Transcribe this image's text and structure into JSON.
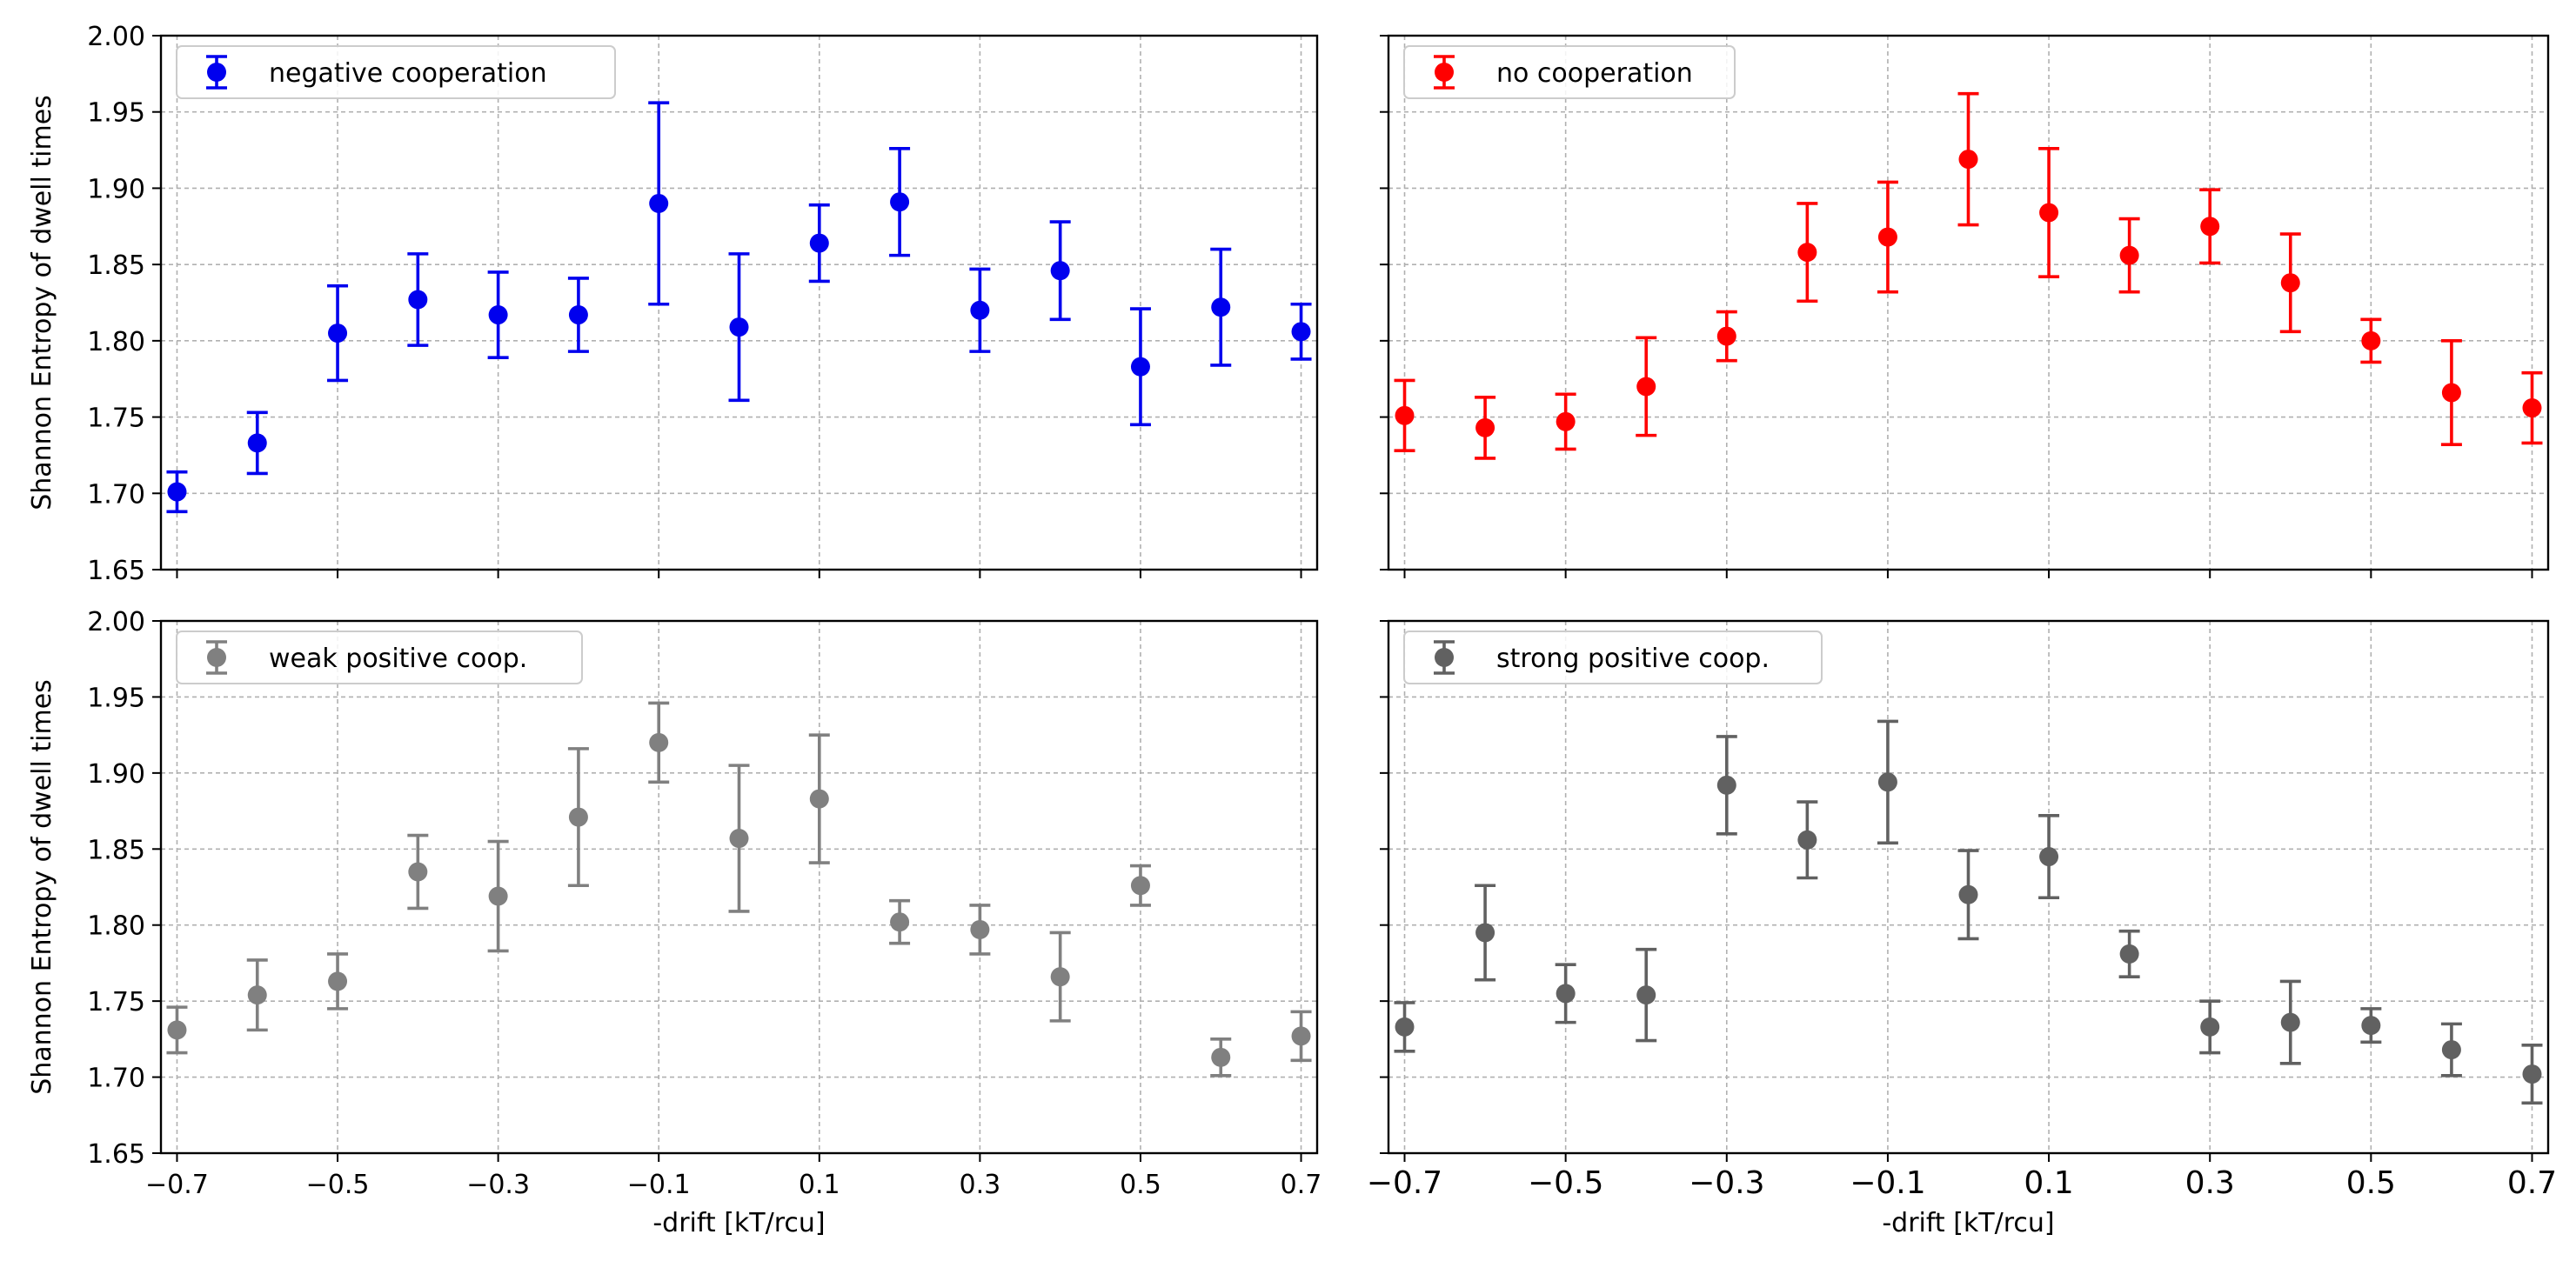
{
  "chart_data": [
    {
      "type": "scatter",
      "panel": "top-left",
      "error_bars": true,
      "ylabel": "Shannon Entropy of dwell times",
      "xlabel": "",
      "legend": "top-left",
      "grid": true,
      "xlim": [
        -0.72,
        0.72
      ],
      "ylim": [
        1.65,
        2.0
      ],
      "xticks": [
        "−0.7",
        "−0.5",
        "−0.3",
        "−0.1",
        "0.1",
        "0.3",
        "0.5",
        "0.7"
      ],
      "yticks": [
        "1.65",
        "1.70",
        "1.75",
        "1.80",
        "1.85",
        "1.90",
        "1.95",
        "2.00"
      ],
      "show_xtick_labels": false,
      "show_ytick_labels": true,
      "series": [
        {
          "name": "negative cooperation",
          "color": "#0000ee",
          "x": [
            -0.7,
            -0.6,
            -0.5,
            -0.4,
            -0.3,
            -0.2,
            -0.1,
            0.0,
            0.1,
            0.2,
            0.3,
            0.4,
            0.5,
            0.6,
            0.7
          ],
          "y": [
            1.701,
            1.733,
            1.805,
            1.827,
            1.817,
            1.817,
            1.89,
            1.809,
            1.864,
            1.891,
            1.82,
            1.846,
            1.783,
            1.822,
            1.806
          ],
          "err": [
            0.013,
            0.02,
            0.031,
            0.03,
            0.028,
            0.024,
            0.066,
            0.048,
            0.025,
            0.035,
            0.027,
            0.032,
            0.038,
            0.038,
            0.018
          ]
        }
      ]
    },
    {
      "type": "scatter",
      "panel": "top-right",
      "error_bars": true,
      "ylabel": "",
      "xlabel": "",
      "legend": "top-left",
      "grid": true,
      "xlim": [
        -0.72,
        0.72
      ],
      "ylim": [
        1.65,
        2.0
      ],
      "xticks": [
        "−0.7",
        "−0.5",
        "−0.3",
        "−0.1",
        "0.1",
        "0.3",
        "0.5",
        "0.7"
      ],
      "yticks": [
        "1.65",
        "1.70",
        "1.75",
        "1.80",
        "1.85",
        "1.90",
        "1.95",
        "2.00"
      ],
      "show_xtick_labels": false,
      "show_ytick_labels": false,
      "series": [
        {
          "name": "no cooperation",
          "color": "#ff0000",
          "x": [
            -0.7,
            -0.6,
            -0.5,
            -0.4,
            -0.3,
            -0.2,
            -0.1,
            0.0,
            0.1,
            0.2,
            0.3,
            0.4,
            0.5,
            0.6,
            0.7
          ],
          "y": [
            1.751,
            1.743,
            1.747,
            1.77,
            1.803,
            1.858,
            1.868,
            1.919,
            1.884,
            1.856,
            1.875,
            1.838,
            1.8,
            1.766,
            1.756
          ],
          "err": [
            0.023,
            0.02,
            0.018,
            0.032,
            0.016,
            0.032,
            0.036,
            0.043,
            0.042,
            0.024,
            0.024,
            0.032,
            0.014,
            0.034,
            0.023
          ]
        }
      ]
    },
    {
      "type": "scatter",
      "panel": "bottom-left",
      "error_bars": true,
      "ylabel": "Shannon Entropy of dwell times",
      "xlabel": "-drift [kT/rcu]",
      "legend": "top-left",
      "grid": true,
      "xlim": [
        -0.72,
        0.72
      ],
      "ylim": [
        1.65,
        2.0
      ],
      "xticks": [
        "−0.7",
        "−0.5",
        "−0.3",
        "−0.1",
        "0.1",
        "0.3",
        "0.5",
        "0.7"
      ],
      "yticks": [
        "1.65",
        "1.70",
        "1.75",
        "1.80",
        "1.85",
        "1.90",
        "1.95",
        "2.00"
      ],
      "show_xtick_labels": true,
      "show_ytick_labels": true,
      "series": [
        {
          "name": "weak positive coop.",
          "color": "#808080",
          "x": [
            -0.7,
            -0.6,
            -0.5,
            -0.4,
            -0.3,
            -0.2,
            -0.1,
            0.0,
            0.1,
            0.2,
            0.3,
            0.4,
            0.5,
            0.6,
            0.7
          ],
          "y": [
            1.731,
            1.754,
            1.763,
            1.835,
            1.819,
            1.871,
            1.92,
            1.857,
            1.883,
            1.802,
            1.797,
            1.766,
            1.826,
            1.713,
            1.727
          ],
          "err": [
            0.015,
            0.023,
            0.018,
            0.024,
            0.036,
            0.045,
            0.026,
            0.048,
            0.042,
            0.014,
            0.016,
            0.029,
            0.013,
            0.012,
            0.016
          ]
        }
      ]
    },
    {
      "type": "scatter",
      "panel": "bottom-right",
      "error_bars": true,
      "ylabel": "",
      "xlabel": "-drift [kT/rcu]",
      "legend": "top-left",
      "grid": true,
      "xlim": [
        -0.72,
        0.72
      ],
      "ylim": [
        1.65,
        2.0
      ],
      "xticks": [
        "−0.7",
        "−0.5",
        "−0.3",
        "−0.1",
        "0.1",
        "0.3",
        "0.5",
        "0.7"
      ],
      "yticks": [
        "1.65",
        "1.70",
        "1.75",
        "1.80",
        "1.85",
        "1.90",
        "1.95",
        "2.00"
      ],
      "show_xtick_labels": true,
      "show_ytick_labels": false,
      "series": [
        {
          "name": "strong positive coop.",
          "color": "#616161",
          "x": [
            -0.7,
            -0.6,
            -0.5,
            -0.4,
            -0.3,
            -0.2,
            -0.1,
            0.0,
            0.1,
            0.2,
            0.3,
            0.4,
            0.5,
            0.6,
            0.7
          ],
          "y": [
            1.733,
            1.795,
            1.755,
            1.754,
            1.892,
            1.856,
            1.894,
            1.82,
            1.845,
            1.781,
            1.733,
            1.736,
            1.734,
            1.718,
            1.702
          ],
          "err": [
            0.016,
            0.031,
            0.019,
            0.03,
            0.032,
            0.025,
            0.04,
            0.029,
            0.027,
            0.015,
            0.017,
            0.027,
            0.011,
            0.017,
            0.019
          ]
        }
      ]
    }
  ]
}
